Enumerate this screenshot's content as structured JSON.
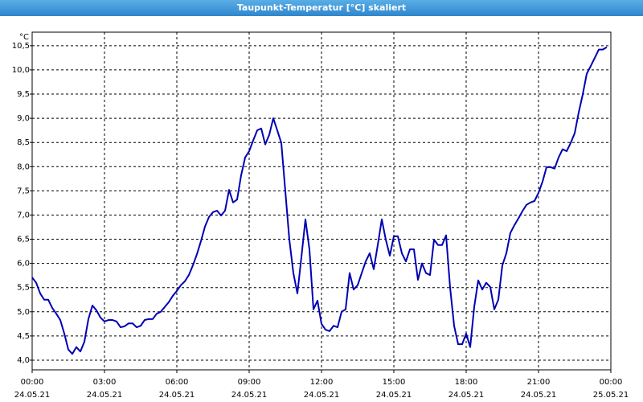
{
  "chart_data": {
    "type": "line",
    "title": "Taupunkt-Temperatur [°C] skaliert",
    "y_unit": "°C",
    "xlim": [
      0,
      1440
    ],
    "ylim": [
      3.8,
      10.78
    ],
    "xticks": [
      {
        "value": 0,
        "label": "00:00",
        "date": "24.05.21"
      },
      {
        "value": 180,
        "label": "03:00",
        "date": "24.05.21"
      },
      {
        "value": 360,
        "label": "06:00",
        "date": "24.05.21"
      },
      {
        "value": 540,
        "label": "09:00",
        "date": "24.05.21"
      },
      {
        "value": 720,
        "label": "12:00",
        "date": "24.05.21"
      },
      {
        "value": 900,
        "label": "15:00",
        "date": "24.05.21"
      },
      {
        "value": 1080,
        "label": "18:00",
        "date": "24.05.21"
      },
      {
        "value": 1260,
        "label": "21:00",
        "date": "24.05.21"
      },
      {
        "value": 1440,
        "label": "00:00",
        "date": "25.05.21"
      }
    ],
    "yticks": [
      {
        "value": 4.0,
        "label": "4,0"
      },
      {
        "value": 4.5,
        "label": "4,5"
      },
      {
        "value": 5.0,
        "label": "5,0"
      },
      {
        "value": 5.5,
        "label": "5,5"
      },
      {
        "value": 6.0,
        "label": "6,0"
      },
      {
        "value": 6.5,
        "label": "6,5"
      },
      {
        "value": 7.0,
        "label": "7,0"
      },
      {
        "value": 7.5,
        "label": "7,5"
      },
      {
        "value": 8.0,
        "label": "8,0"
      },
      {
        "value": 8.5,
        "label": "8,5"
      },
      {
        "value": 9.0,
        "label": "9,0"
      },
      {
        "value": 9.5,
        "label": "9,5"
      },
      {
        "value": 10.0,
        "label": "10,0"
      },
      {
        "value": 10.5,
        "label": "10,5"
      }
    ],
    "grid": true,
    "x": [
      0,
      10,
      20,
      30,
      40,
      50,
      60,
      70,
      80,
      90,
      100,
      110,
      120,
      130,
      140,
      150,
      160,
      170,
      180,
      190,
      200,
      210,
      220,
      230,
      240,
      250,
      260,
      270,
      280,
      290,
      300,
      310,
      320,
      330,
      340,
      350,
      360,
      370,
      380,
      390,
      400,
      410,
      420,
      430,
      440,
      450,
      460,
      470,
      480,
      490,
      500,
      510,
      520,
      530,
      540,
      550,
      560,
      570,
      580,
      590,
      600,
      610,
      620,
      630,
      640,
      650,
      660,
      670,
      680,
      690,
      700,
      710,
      720,
      730,
      740,
      750,
      760,
      770,
      780,
      790,
      800,
      810,
      820,
      830,
      840,
      850,
      860,
      870,
      880,
      890,
      900,
      910,
      920,
      930,
      940,
      950,
      960,
      970,
      980,
      990,
      1000,
      1010,
      1020,
      1030,
      1040,
      1050,
      1060,
      1070,
      1080,
      1090,
      1100,
      1110,
      1120,
      1130,
      1140,
      1150,
      1160,
      1170,
      1180,
      1190,
      1200,
      1210,
      1220,
      1230,
      1240,
      1250,
      1260,
      1270,
      1280,
      1290,
      1300,
      1310,
      1320,
      1330,
      1340,
      1350,
      1360,
      1370,
      1380,
      1390,
      1400,
      1410,
      1420,
      1430
    ],
    "series": [
      {
        "color": "#0000b4",
        "values": [
          5.71,
          5.6,
          5.38,
          5.25,
          5.25,
          5.08,
          4.96,
          4.83,
          4.55,
          4.22,
          4.13,
          4.27,
          4.18,
          4.38,
          4.85,
          5.13,
          5.03,
          4.88,
          4.8,
          4.83,
          4.83,
          4.8,
          4.68,
          4.7,
          4.76,
          4.76,
          4.68,
          4.71,
          4.83,
          4.85,
          4.85,
          4.96,
          5.0,
          5.1,
          5.2,
          5.33,
          5.43,
          5.55,
          5.63,
          5.76,
          5.96,
          6.19,
          6.46,
          6.76,
          6.96,
          7.06,
          7.09,
          6.99,
          7.09,
          7.52,
          7.26,
          7.32,
          7.82,
          8.19,
          8.32,
          8.54,
          8.75,
          8.79,
          8.46,
          8.66,
          9.0,
          8.75,
          8.49,
          7.49,
          6.49,
          5.8,
          5.38,
          6.13,
          6.91,
          6.29,
          5.05,
          5.23,
          4.75,
          4.63,
          4.6,
          4.71,
          4.68,
          5.0,
          5.05,
          5.8,
          5.46,
          5.55,
          5.8,
          6.04,
          6.21,
          5.88,
          6.38,
          6.91,
          6.49,
          6.16,
          6.56,
          6.56,
          6.21,
          6.04,
          6.29,
          6.29,
          5.66,
          6.0,
          5.8,
          5.76,
          6.49,
          6.38,
          6.38,
          6.58,
          5.5,
          4.71,
          4.33,
          4.33,
          4.55,
          4.27,
          5.1,
          5.65,
          5.46,
          5.6,
          5.51,
          5.05,
          5.25,
          5.96,
          6.21,
          6.63,
          6.79,
          6.93,
          7.08,
          7.21,
          7.26,
          7.29,
          7.46,
          7.69,
          7.99,
          7.99,
          7.96,
          8.19,
          8.36,
          8.32,
          8.49,
          8.69,
          9.12,
          9.49,
          9.92,
          10.08,
          10.25,
          10.42,
          10.42,
          10.47
        ]
      }
    ]
  }
}
